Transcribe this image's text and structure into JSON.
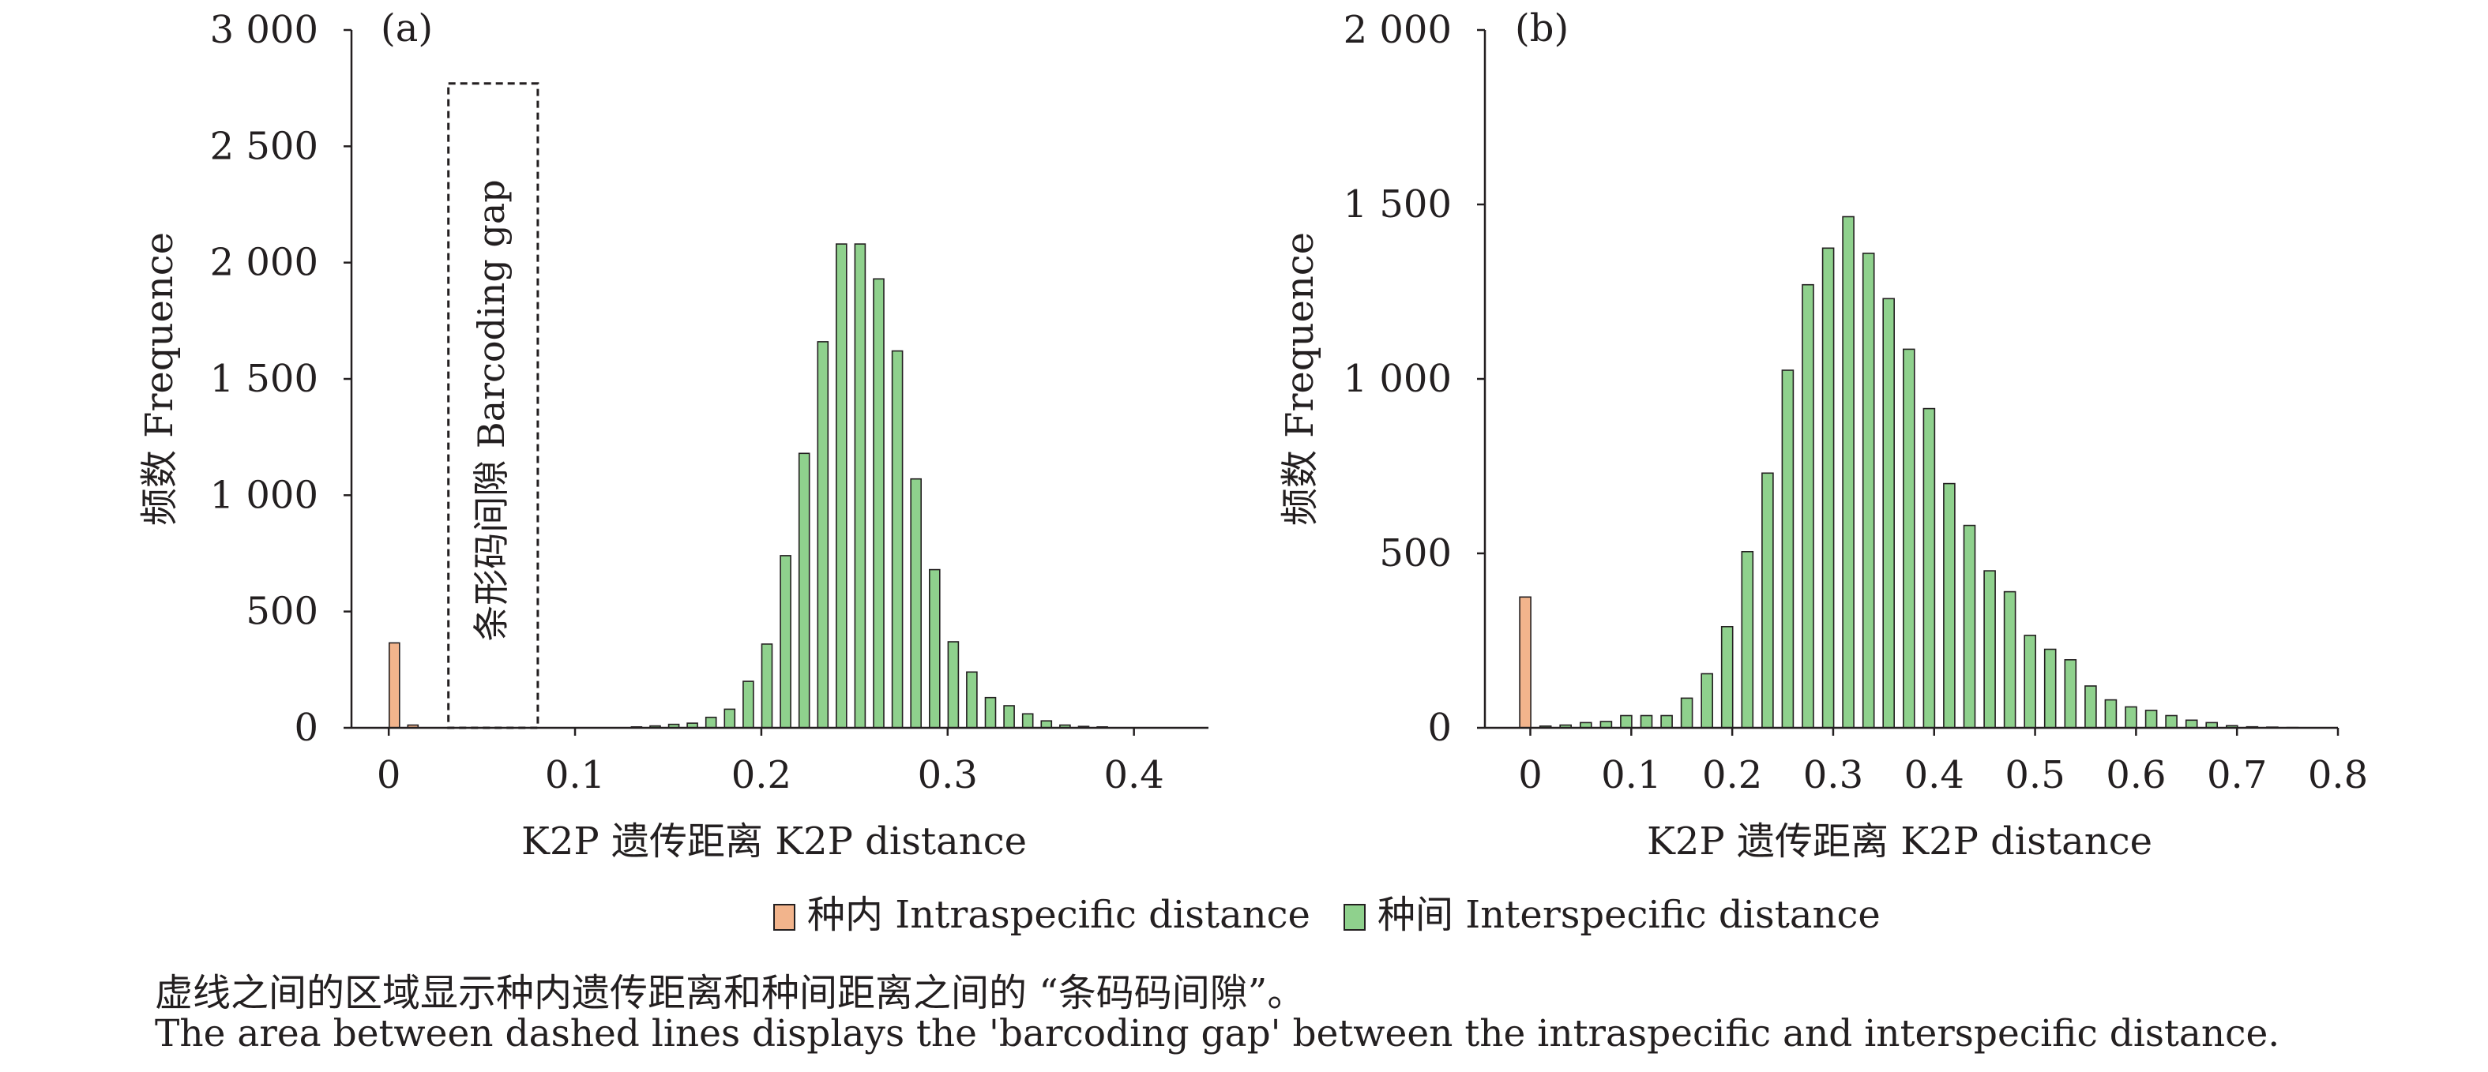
{
  "chart_data": [
    {
      "type": "bar",
      "panel_label": "(a)",
      "xlabel": "K2P 遗传距离 K2P distance",
      "ylabel": "频数 Frequence",
      "ylim": [
        0,
        3000
      ],
      "xlim": [
        -0.02,
        0.44
      ],
      "y_ticks": [
        0,
        500,
        1000,
        1500,
        2000,
        2500,
        3000
      ],
      "y_tick_labels": [
        "0",
        "500",
        "1 000",
        "1 500",
        "2 000",
        "2 500",
        "3 000"
      ],
      "x_ticks": [
        0,
        0.1,
        0.2,
        0.3,
        0.4
      ],
      "x_tick_labels": [
        "0",
        "0.1",
        "0.2",
        "0.3",
        "0.4"
      ],
      "annotation": "条形码间隙 Barcoding gap",
      "gap_range": [
        0.032,
        0.08
      ],
      "gap_top": 2770,
      "series": [
        {
          "name": "种内 Intraspecific distance",
          "color": "#f2b48c",
          "x": [
            0.003,
            0.013
          ],
          "values": [
            365,
            12
          ]
        },
        {
          "name": "种间 Interspecific distance",
          "color": "#8fd18d",
          "x": [
            0.133,
            0.143,
            0.153,
            0.163,
            0.173,
            0.183,
            0.193,
            0.203,
            0.213,
            0.223,
            0.233,
            0.243,
            0.253,
            0.263,
            0.273,
            0.283,
            0.293,
            0.303,
            0.313,
            0.323,
            0.333,
            0.343,
            0.353,
            0.363,
            0.373,
            0.383
          ],
          "values": [
            4,
            8,
            15,
            20,
            45,
            80,
            200,
            360,
            740,
            1180,
            1660,
            2080,
            2080,
            1930,
            1620,
            1070,
            680,
            370,
            240,
            130,
            95,
            60,
            30,
            12,
            6,
            4
          ]
        }
      ]
    },
    {
      "type": "bar",
      "panel_label": "(b)",
      "xlabel": "K2P 遗传距离 K2P distance",
      "ylabel": "频数 Frequence",
      "ylim": [
        0,
        2000
      ],
      "xlim": [
        -0.045,
        0.8
      ],
      "y_ticks": [
        0,
        500,
        1000,
        1500,
        2000
      ],
      "y_tick_labels": [
        "0",
        "500",
        "1 000",
        "1 500",
        "2 000"
      ],
      "x_ticks": [
        0,
        0.1,
        0.2,
        0.3,
        0.4,
        0.5,
        0.6,
        0.7,
        0.8
      ],
      "x_tick_labels": [
        "0",
        "0.1",
        "0.2",
        "0.3",
        "0.4",
        "0.5",
        "0.6",
        "0.7",
        "0.8"
      ],
      "series": [
        {
          "name": "种内 Intraspecific distance",
          "color": "#f2b48c",
          "x": [
            -0.005
          ],
          "values": [
            375
          ]
        },
        {
          "name": "种间 Interspecific distance",
          "color": "#8fd18d",
          "x": [
            0.015,
            0.035,
            0.055,
            0.075,
            0.095,
            0.115,
            0.135,
            0.155,
            0.175,
            0.195,
            0.215,
            0.235,
            0.255,
            0.275,
            0.295,
            0.315,
            0.335,
            0.355,
            0.375,
            0.395,
            0.415,
            0.435,
            0.455,
            0.475,
            0.495,
            0.515,
            0.535,
            0.555,
            0.575,
            0.595,
            0.615,
            0.635,
            0.655,
            0.675,
            0.695,
            0.715,
            0.735,
            0.755
          ],
          "values": [
            5,
            8,
            15,
            18,
            35,
            35,
            35,
            85,
            155,
            290,
            505,
            730,
            1025,
            1270,
            1375,
            1465,
            1360,
            1230,
            1085,
            915,
            700,
            580,
            450,
            390,
            265,
            225,
            195,
            120,
            80,
            60,
            50,
            35,
            22,
            15,
            6,
            3,
            2,
            1
          ]
        }
      ]
    }
  ],
  "legend": [
    {
      "label": "种内 Intraspecific distance",
      "color": "#f2b48c"
    },
    {
      "label": "种间 Interspecific distance",
      "color": "#8fd18d"
    }
  ],
  "caption": {
    "zh": "虚线之间的区域显示种内遗传距离和种间距离之间的 “条码码间隙”。",
    "en": "The area between dashed lines displays the 'barcoding gap' between the intraspecific and interspecific distance."
  },
  "colors": {
    "axis": "#231f20",
    "intra": "#f2b48c",
    "inter": "#8fd18d",
    "bar_edge": "#231f20"
  }
}
